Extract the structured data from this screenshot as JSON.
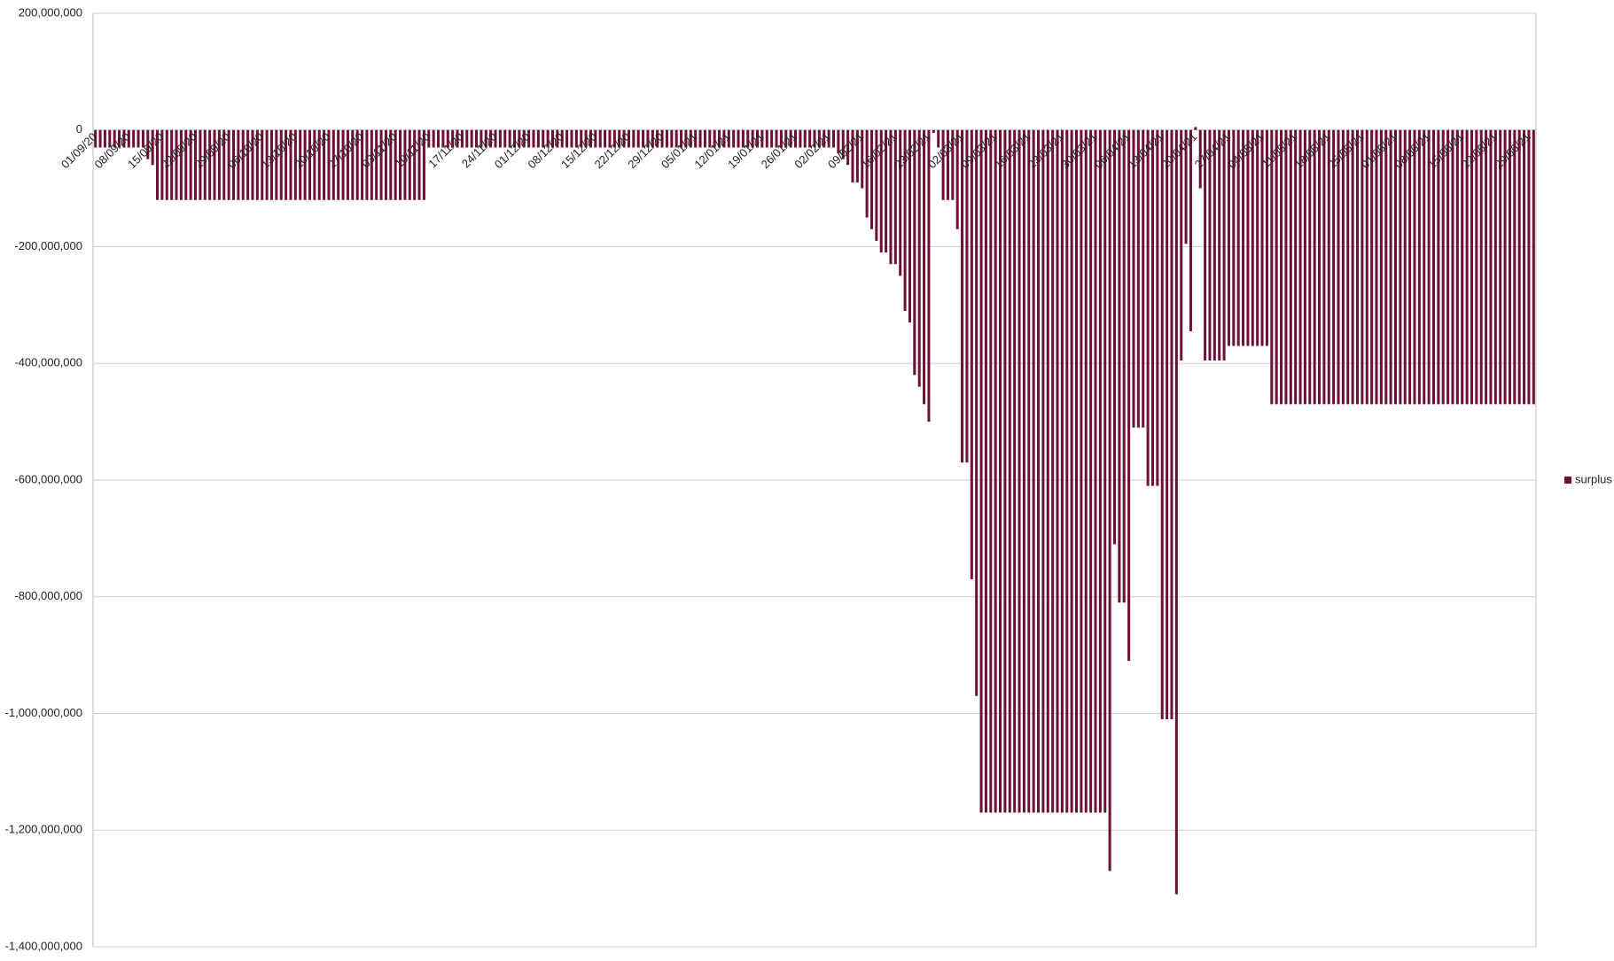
{
  "chart_data": {
    "type": "bar",
    "categories": [
      "01/09/20",
      null,
      null,
      null,
      null,
      null,
      null,
      "08/09/20",
      null,
      null,
      null,
      null,
      null,
      null,
      "15/09/20",
      null,
      null,
      null,
      null,
      null,
      null,
      "22/09/20",
      null,
      null,
      null,
      null,
      null,
      null,
      "29/09/20",
      null,
      null,
      null,
      null,
      null,
      null,
      "06/10/20",
      null,
      null,
      null,
      null,
      null,
      null,
      "13/10/20",
      null,
      null,
      null,
      null,
      null,
      null,
      "20/10/20",
      null,
      null,
      null,
      null,
      null,
      null,
      "27/10/20",
      null,
      null,
      null,
      null,
      null,
      null,
      "03/11/20",
      null,
      null,
      null,
      null,
      null,
      null,
      "10/11/20",
      null,
      null,
      null,
      null,
      null,
      null,
      "17/11/20",
      null,
      null,
      null,
      null,
      null,
      null,
      "24/11/20",
      null,
      null,
      null,
      null,
      null,
      null,
      "01/12/20",
      null,
      null,
      null,
      null,
      null,
      null,
      "08/12/20",
      null,
      null,
      null,
      null,
      null,
      null,
      "15/12/20",
      null,
      null,
      null,
      null,
      null,
      null,
      "22/12/20",
      null,
      null,
      null,
      null,
      null,
      null,
      "29/12/20",
      null,
      null,
      null,
      null,
      null,
      null,
      "05/01/21",
      null,
      null,
      null,
      null,
      null,
      null,
      "12/01/21",
      null,
      null,
      null,
      null,
      null,
      null,
      "19/01/21",
      null,
      null,
      null,
      null,
      null,
      null,
      "26/01/21",
      null,
      null,
      null,
      null,
      null,
      null,
      "02/02/21",
      null,
      null,
      null,
      null,
      null,
      null,
      "09/02/21",
      null,
      null,
      null,
      null,
      null,
      null,
      "16/02/21",
      null,
      null,
      null,
      null,
      null,
      null,
      "23/02/21",
      null,
      null,
      null,
      null,
      null,
      null,
      "02/03/21",
      null,
      null,
      null,
      null,
      null,
      null,
      "09/03/21",
      null,
      null,
      null,
      null,
      null,
      null,
      "16/03/21",
      null,
      null,
      null,
      null,
      null,
      null,
      "23/03/21",
      null,
      null,
      null,
      null,
      null,
      null,
      "30/03/21",
      null,
      null,
      null,
      null,
      null,
      null,
      "06/04/21",
      null,
      null,
      null,
      null,
      null,
      null,
      "13/04/21",
      null,
      null,
      null,
      null,
      null,
      null,
      "20/04/21",
      null,
      null,
      null,
      null,
      null,
      null,
      "27/04/21",
      null,
      null,
      null,
      null,
      null,
      null,
      "04/05/21",
      null,
      null,
      null,
      null,
      null,
      null,
      "11/05/21",
      null,
      null,
      null,
      null,
      null,
      null,
      "18/05/21",
      null,
      null,
      null,
      null,
      null,
      null,
      "25/05/21",
      null,
      null,
      null,
      null,
      null,
      null,
      "01/06/21",
      null,
      null,
      null,
      null,
      null,
      null,
      "08/06/21",
      null,
      null,
      null,
      null,
      null,
      null,
      "15/06/21",
      null,
      null,
      null,
      null,
      null,
      null,
      "22/06/21",
      null,
      null,
      null,
      null,
      null,
      null,
      "29/06/21",
      null
    ],
    "series": [
      {
        "name": "surplus",
        "color": "#6d1035",
        "values": [
          -30000000,
          -30000000,
          -30000000,
          -30000000,
          -30000000,
          -30000000,
          -30000000,
          -30000000,
          -30000000,
          -30000000,
          -30000000,
          -50000000,
          -60000000,
          -120000000,
          -120000000,
          -120000000,
          -120000000,
          -120000000,
          -120000000,
          -120000000,
          -120000000,
          -120000000,
          -120000000,
          -120000000,
          -120000000,
          -120000000,
          -120000000,
          -120000000,
          -120000000,
          -120000000,
          -120000000,
          -120000000,
          -120000000,
          -120000000,
          -120000000,
          -120000000,
          -120000000,
          -120000000,
          -120000000,
          -120000000,
          -120000000,
          -120000000,
          -120000000,
          -120000000,
          -120000000,
          -120000000,
          -120000000,
          -120000000,
          -120000000,
          -120000000,
          -120000000,
          -120000000,
          -120000000,
          -120000000,
          -120000000,
          -120000000,
          -120000000,
          -120000000,
          -120000000,
          -120000000,
          -120000000,
          -120000000,
          -120000000,
          -120000000,
          -120000000,
          -120000000,
          -120000000,
          -120000000,
          -120000000,
          -120000000,
          -30000000,
          -30000000,
          -30000000,
          -30000000,
          -30000000,
          -30000000,
          -30000000,
          -30000000,
          -30000000,
          -30000000,
          -30000000,
          -30000000,
          -30000000,
          -30000000,
          -30000000,
          -30000000,
          -30000000,
          -30000000,
          -30000000,
          -30000000,
          -30000000,
          -30000000,
          -30000000,
          -30000000,
          -30000000,
          -30000000,
          -30000000,
          -30000000,
          -30000000,
          -30000000,
          -30000000,
          -30000000,
          -30000000,
          -30000000,
          -30000000,
          -30000000,
          -30000000,
          -30000000,
          -30000000,
          -30000000,
          -30000000,
          -30000000,
          -30000000,
          -30000000,
          -30000000,
          -30000000,
          -30000000,
          -30000000,
          -30000000,
          -30000000,
          -30000000,
          -30000000,
          -30000000,
          -30000000,
          -30000000,
          -30000000,
          -30000000,
          -30000000,
          -30000000,
          -30000000,
          -30000000,
          -30000000,
          -30000000,
          -30000000,
          -30000000,
          -30000000,
          -30000000,
          -30000000,
          -30000000,
          -30000000,
          -30000000,
          -30000000,
          -30000000,
          -30000000,
          -30000000,
          -30000000,
          -30000000,
          -30000000,
          -30000000,
          -30000000,
          -30000000,
          -30000000,
          -30000000,
          -30000000,
          -30000000,
          -30000000,
          -40000000,
          -50000000,
          -60000000,
          -90000000,
          -90000000,
          -100000000,
          -150000000,
          -170000000,
          -190000000,
          -210000000,
          -210000000,
          -230000000,
          -230000000,
          -250000000,
          -310000000,
          -330000000,
          -420000000,
          -440000000,
          -470000000,
          -500000000,
          -5000000,
          -30000000,
          -120000000,
          -120000000,
          -120000000,
          -170000000,
          -570000000,
          -570000000,
          -770000000,
          -970000000,
          -1170000000,
          -1170000000,
          -1170000000,
          -1170000000,
          -1170000000,
          -1170000000,
          -1170000000,
          -1170000000,
          -1170000000,
          -1170000000,
          -1170000000,
          -1170000000,
          -1170000000,
          -1170000000,
          -1170000000,
          -1170000000,
          -1170000000,
          -1170000000,
          -1170000000,
          -1170000000,
          -1170000000,
          -1170000000,
          -1170000000,
          -1170000000,
          -1170000000,
          -1170000000,
          -1170000000,
          -1270000000,
          -710000000,
          -810000000,
          -810000000,
          -910000000,
          -510000000,
          -510000000,
          -510000000,
          -610000000,
          -610000000,
          -610000000,
          -1010000000,
          -1010000000,
          -1010000000,
          -1310000000,
          -395000000,
          -195000000,
          -345000000,
          5000000,
          -100000000,
          -395000000,
          -395000000,
          -395000000,
          -395000000,
          -395000000,
          -370000000,
          -370000000,
          -370000000,
          -370000000,
          -370000000,
          -370000000,
          -370000000,
          -370000000,
          -370000000,
          -470000000,
          -470000000,
          -470000000,
          -470000000,
          -470000000,
          -470000000,
          -470000000,
          -470000000,
          -470000000,
          -470000000,
          -470000000,
          -470000000,
          -470000000,
          -470000000,
          -470000000,
          -470000000,
          -470000000,
          -470000000,
          -470000000,
          -470000000,
          -470000000,
          -470000000,
          -470000000,
          -470000000,
          -470000000,
          -470000000,
          -470000000,
          -470000000,
          -470000000,
          -470000000,
          -470000000,
          -470000000,
          -470000000,
          -470000000,
          -470000000,
          -470000000,
          -470000000,
          -470000000,
          -470000000,
          -470000000,
          -470000000,
          -470000000,
          -470000000,
          -470000000,
          -470000000,
          -470000000,
          -470000000,
          -470000000,
          -470000000,
          -470000000,
          -470000000,
          -470000000,
          -470000000,
          -470000000,
          -470000000,
          -470000000
        ]
      }
    ],
    "ylim": [
      -1400000000,
      200000000
    ],
    "yticks": [
      {
        "value": -1400000000,
        "label": "-1,400,000,000"
      },
      {
        "value": -1200000000,
        "label": "-1,200,000,000"
      },
      {
        "value": -1000000000,
        "label": "-1,000,000,000"
      },
      {
        "value": -800000000,
        "label": "-800,000,000"
      },
      {
        "value": -600000000,
        "label": "-600,000,000"
      },
      {
        "value": -400000000,
        "label": "-400,000,000"
      },
      {
        "value": -200000000,
        "label": "-200,000,000"
      },
      0,
      {
        "value": 200000000,
        "label": "200,000,000"
      }
    ],
    "grid": true,
    "legend": "right"
  }
}
